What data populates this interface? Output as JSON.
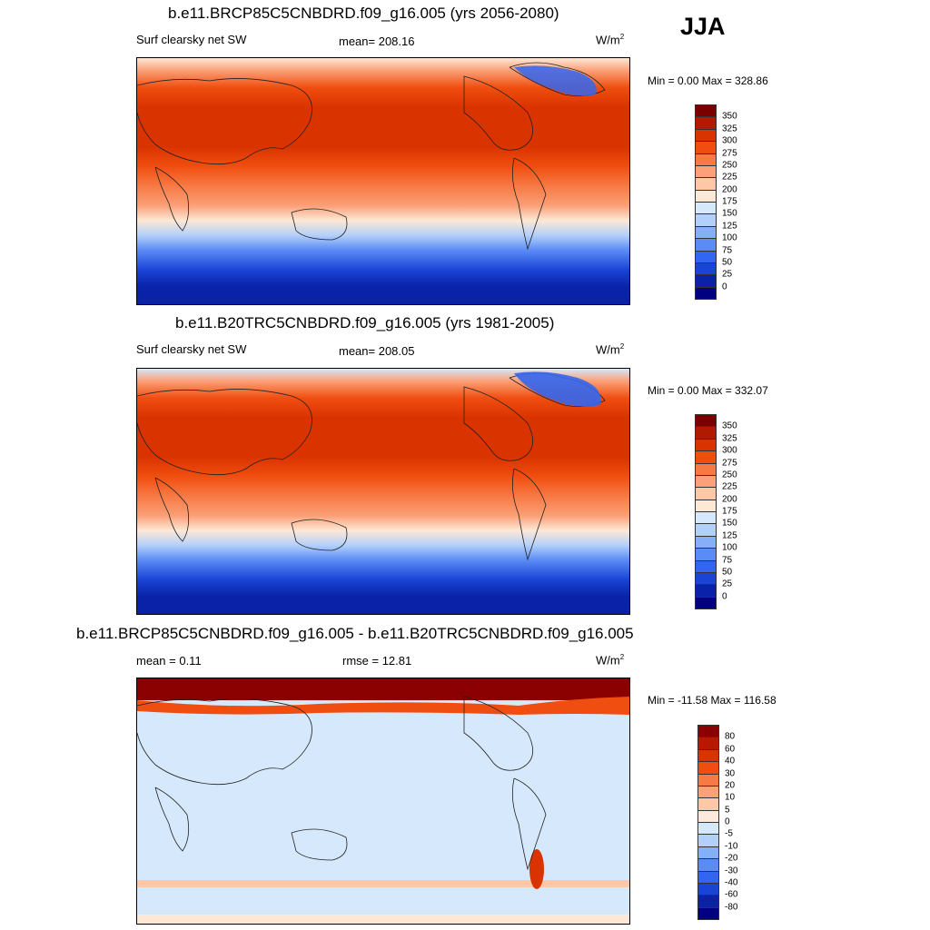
{
  "season": "JJA",
  "panels": [
    {
      "title": "b.e11.BRCP85C5CNBDRD.f09_g16.005 (yrs 2056-2080)",
      "left_label": "Surf clearsky net SW",
      "center_label": "mean= 208.16",
      "units": "W/m",
      "units_sup": "2",
      "minmax": "Min =    0.00 Max = 328.86",
      "colorbar_ticks": [
        "350",
        "325",
        "300",
        "275",
        "250",
        "225",
        "200",
        "175",
        "150",
        "125",
        "100",
        "75",
        "50",
        "25",
        "0"
      ],
      "colorbar_colors": [
        "#7a0000",
        "#b01a00",
        "#d93300",
        "#f04e10",
        "#f77a45",
        "#fba078",
        "#fdc7a8",
        "#fde8d6",
        "#d6e8fb",
        "#b3d0fb",
        "#85b0f7",
        "#5b8cf5",
        "#3366f0",
        "#1a44d6",
        "#0a22a8",
        "#000080"
      ]
    },
    {
      "title": "b.e11.B20TRC5CNBDRD.f09_g16.005 (yrs 1981-2005)",
      "left_label": "Surf clearsky net SW",
      "center_label": "mean= 208.05",
      "units": "W/m",
      "units_sup": "2",
      "minmax": "Min =    0.00 Max = 332.07",
      "colorbar_ticks": [
        "350",
        "325",
        "300",
        "275",
        "250",
        "225",
        "200",
        "175",
        "150",
        "125",
        "100",
        "75",
        "50",
        "25",
        "0"
      ],
      "colorbar_colors": [
        "#7a0000",
        "#b01a00",
        "#d93300",
        "#f04e10",
        "#f77a45",
        "#fba078",
        "#fdc7a8",
        "#fde8d6",
        "#d6e8fb",
        "#b3d0fb",
        "#85b0f7",
        "#5b8cf5",
        "#3366f0",
        "#1a44d6",
        "#0a22a8",
        "#000080"
      ]
    },
    {
      "title": "b.e11.BRCP85C5CNBDRD.f09_g16.005 - b.e11.B20TRC5CNBDRD.f09_g16.005",
      "left_label": "mean =   0.11",
      "center_label": "rmse =  12.81",
      "units": "W/m",
      "units_sup": "2",
      "minmax": "Min = -11.58 Max = 116.58",
      "colorbar_ticks": [
        "80",
        "60",
        "40",
        "30",
        "20",
        "10",
        "5",
        "0",
        "-5",
        "-10",
        "-20",
        "-30",
        "-40",
        "-60",
        "-80"
      ],
      "colorbar_colors": [
        "#8b0000",
        "#b81800",
        "#d93300",
        "#f04e10",
        "#f77a45",
        "#fba078",
        "#fdc7a8",
        "#fdeadc",
        "#d6e8fb",
        "#b3d0fb",
        "#85b0f7",
        "#5b8cf5",
        "#3366f0",
        "#1a44d6",
        "#0a22a8",
        "#000080"
      ]
    }
  ]
}
